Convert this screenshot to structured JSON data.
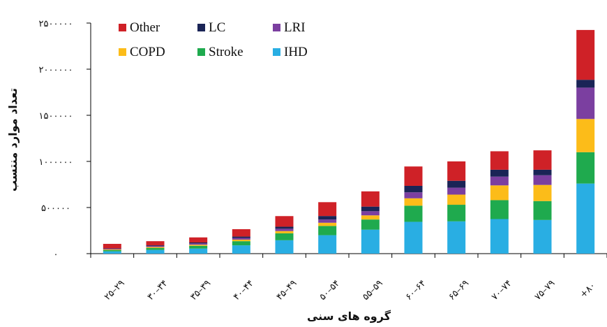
{
  "chart_data": {
    "type": "bar",
    "stacked": true,
    "title": "",
    "xlabel": "گروه های سنی",
    "ylabel": "تعداد موارد منتسب",
    "ylim": [
      0,
      2500000
    ],
    "yticks": [
      0,
      500000,
      1000000,
      1500000,
      2000000,
      2500000
    ],
    "ytick_labels": [
      "۰",
      "۵۰۰۰۰۰",
      "۱۰۰۰۰۰۰",
      "۱۵۰۰۰۰۰",
      "۲۰۰۰۰۰۰",
      "۲۵۰۰۰۰۰"
    ],
    "categories": [
      "۲۵–۲۹",
      "۳۰–۳۴",
      "۳۵–۳۹",
      "۴۰–۴۴",
      "۴۵–۴۹",
      "۵۰–۵۴",
      "۵۵–۵۹",
      "۶۰–۶۴",
      "۶۵–۶۹",
      "۷۰–۷۴",
      "۷۵–۷۹",
      "+۸۰"
    ],
    "legend_position": "top-left",
    "series": [
      {
        "name": "IHD",
        "color": "#29aee3",
        "values": [
          25000,
          40000,
          55000,
          90000,
          145000,
          200000,
          260000,
          345000,
          350000,
          375000,
          365000,
          760000
        ]
      },
      {
        "name": "Stroke",
        "color": "#1faa4e",
        "values": [
          13000,
          22000,
          30000,
          45000,
          75000,
          100000,
          110000,
          175000,
          180000,
          205000,
          205000,
          340000
        ]
      },
      {
        "name": "COPD",
        "color": "#fcbc19",
        "values": [
          7000,
          10000,
          12000,
          17000,
          25000,
          35000,
          45000,
          80000,
          110000,
          160000,
          175000,
          360000
        ]
      },
      {
        "name": "LRI",
        "color": "#7b3fa0",
        "values": [
          7000,
          11000,
          14000,
          18000,
          25000,
          35000,
          45000,
          65000,
          75000,
          95000,
          105000,
          340000
        ]
      },
      {
        "name": "LC",
        "color": "#1a2456",
        "values": [
          4000,
          7000,
          10000,
          15000,
          22000,
          38000,
          50000,
          70000,
          75000,
          75000,
          60000,
          85000
        ]
      },
      {
        "name": "Other",
        "color": "#cf2127",
        "values": [
          50000,
          45000,
          55000,
          80000,
          115000,
          150000,
          165000,
          210000,
          210000,
          200000,
          210000,
          540000
        ]
      }
    ],
    "legend_order": [
      "Other",
      "LC",
      "LRI",
      "COPD",
      "Stroke",
      "IHD"
    ]
  }
}
